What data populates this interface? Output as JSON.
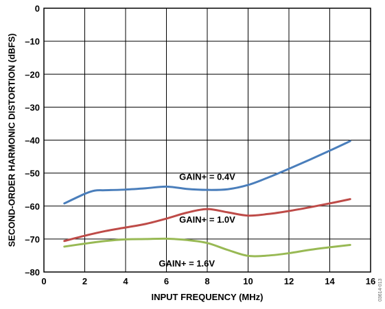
{
  "chart_data": {
    "type": "line",
    "xlabel": "INPUT FREQUENCY (MHz)",
    "ylabel": "SECOND-ORDER HARMONIC DISTORTION (dBFS)",
    "xlim": [
      0,
      16
    ],
    "ylim": [
      -80,
      0
    ],
    "xticks": [
      "0",
      "2",
      "4",
      "6",
      "8",
      "10",
      "12",
      "14",
      "16"
    ],
    "yticks": [
      "0",
      "–10",
      "–20",
      "–30",
      "–40",
      "–50",
      "–60",
      "–70",
      "–80"
    ],
    "grid": true,
    "series": [
      {
        "name": "GAIN+ = 0.4V",
        "color": "#4a7ebb",
        "x": [
          1,
          2,
          2.5,
          3,
          4,
          5,
          6,
          7,
          8,
          9,
          10,
          11,
          12,
          13,
          14,
          15
        ],
        "y": [
          -59.2,
          -56.3,
          -55.3,
          -55.2,
          -55.0,
          -54.6,
          -54.1,
          -54.8,
          -55.1,
          -54.9,
          -53.6,
          -51.3,
          -48.7,
          -46.0,
          -43.2,
          -40.3
        ]
      },
      {
        "name": "GAIN+ = 1.0V",
        "color": "#be4b48",
        "x": [
          1,
          2,
          3,
          4,
          5,
          6,
          7,
          8,
          9,
          10,
          11,
          12,
          13,
          14,
          15
        ],
        "y": [
          -70.6,
          -69.0,
          -67.6,
          -66.5,
          -65.4,
          -63.8,
          -62.0,
          -60.9,
          -61.9,
          -62.9,
          -62.4,
          -61.5,
          -60.4,
          -59.2,
          -57.9
        ]
      },
      {
        "name": "GAIN+ = 1.6V",
        "color": "#98b954",
        "x": [
          1,
          2,
          3,
          4,
          5,
          6,
          7,
          8,
          9,
          10,
          11,
          12,
          13,
          14,
          15
        ],
        "y": [
          -72.3,
          -71.4,
          -70.6,
          -70.1,
          -70.0,
          -69.9,
          -70.3,
          -71.2,
          -73.3,
          -75.1,
          -75.0,
          -74.3,
          -73.3,
          -72.5,
          -71.8
        ]
      }
    ],
    "annotations": [
      {
        "text": "GAIN+ = 0.4V",
        "x": 8.0,
        "y": -51.0
      },
      {
        "text": "GAIN+ = 1.0V",
        "x": 8.0,
        "y": -64.0
      },
      {
        "text": "GAIN+ = 1.6V",
        "x": 7.0,
        "y": -77.3
      }
    ],
    "watermark": "03614-013"
  }
}
